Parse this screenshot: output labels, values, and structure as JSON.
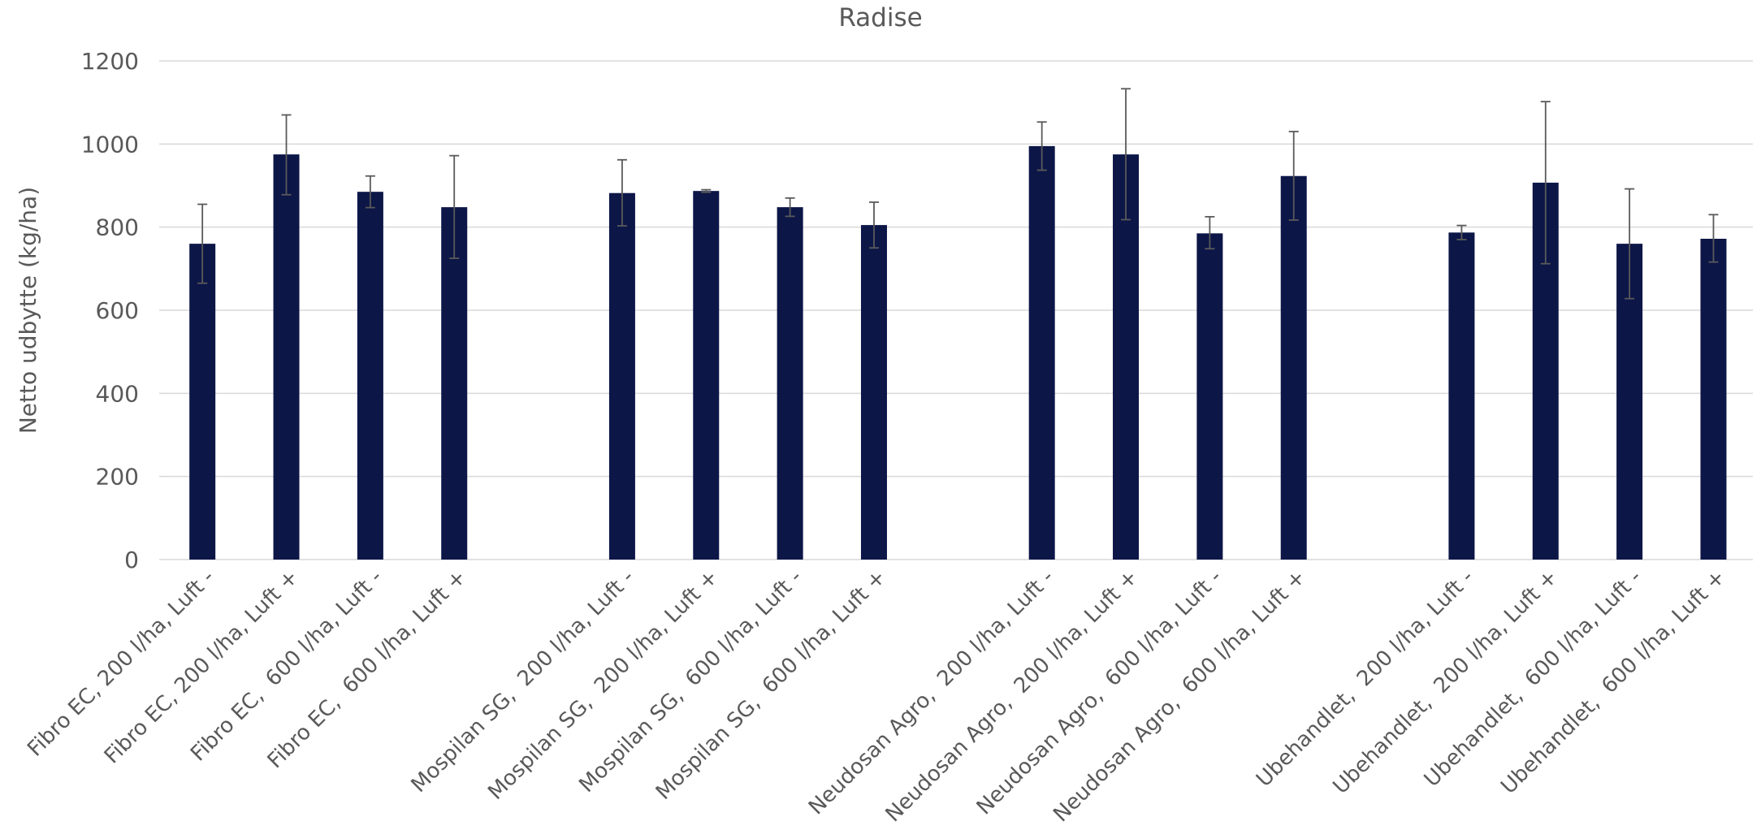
{
  "chart_data": {
    "type": "bar",
    "title": "Radise",
    "ylabel": "Netto udbytte (kg/ha)",
    "xlabel": "",
    "ylim": [
      0,
      1200
    ],
    "yticks": [
      0,
      200,
      400,
      600,
      800,
      1000,
      1200
    ],
    "grid": true,
    "legend": "none",
    "colors": {
      "bar": "#0c1647",
      "error_bar": "#5a5a5a",
      "grid": "#d9d9d9",
      "text": "#595959"
    },
    "categories": [
      "Fibro EC, 200 l/ha, Luft -",
      "Fibro EC, 200 l/ha, Luft +",
      "Fibro EC,  600 l/ha, Luft -",
      "Fibro EC,  600 l/ha, Luft +",
      "",
      "Mospilan SG,  200 l/ha, Luft -",
      "Mospilan SG,  200 l/ha, Luft +",
      "Mospilan SG,  600 l/ha, Luft -",
      "Mospilan SG,  600 l/ha, Luft +",
      "",
      "Neudosan Agro,  200 l/ha, Luft -",
      "Neudosan Agro,  200 l/ha, Luft +",
      "Neudosan Agro,  600 l/ha, Luft -",
      "Neudosan Agro,  600 l/ha, Luft +",
      "",
      "Ubehandlet,  200 l/ha, Luft -",
      "Ubehandlet,  200 l/ha, Luft +",
      "Ubehandlet,  600 l/ha, Luft -",
      "Ubehandlet,  600 l/ha, Luft +"
    ],
    "values": [
      760,
      975,
      885,
      848,
      null,
      882,
      887,
      848,
      805,
      null,
      995,
      975,
      785,
      923,
      null,
      787,
      907,
      760,
      772
    ],
    "error_low": [
      665,
      878,
      847,
      725,
      null,
      803,
      884,
      826,
      750,
      null,
      937,
      818,
      748,
      817,
      null,
      770,
      712,
      628,
      716
    ],
    "error_high": [
      855,
      1070,
      923,
      972,
      null,
      962,
      890,
      870,
      860,
      null,
      1053,
      1133,
      825,
      1030,
      null,
      804,
      1102,
      892,
      830
    ]
  }
}
